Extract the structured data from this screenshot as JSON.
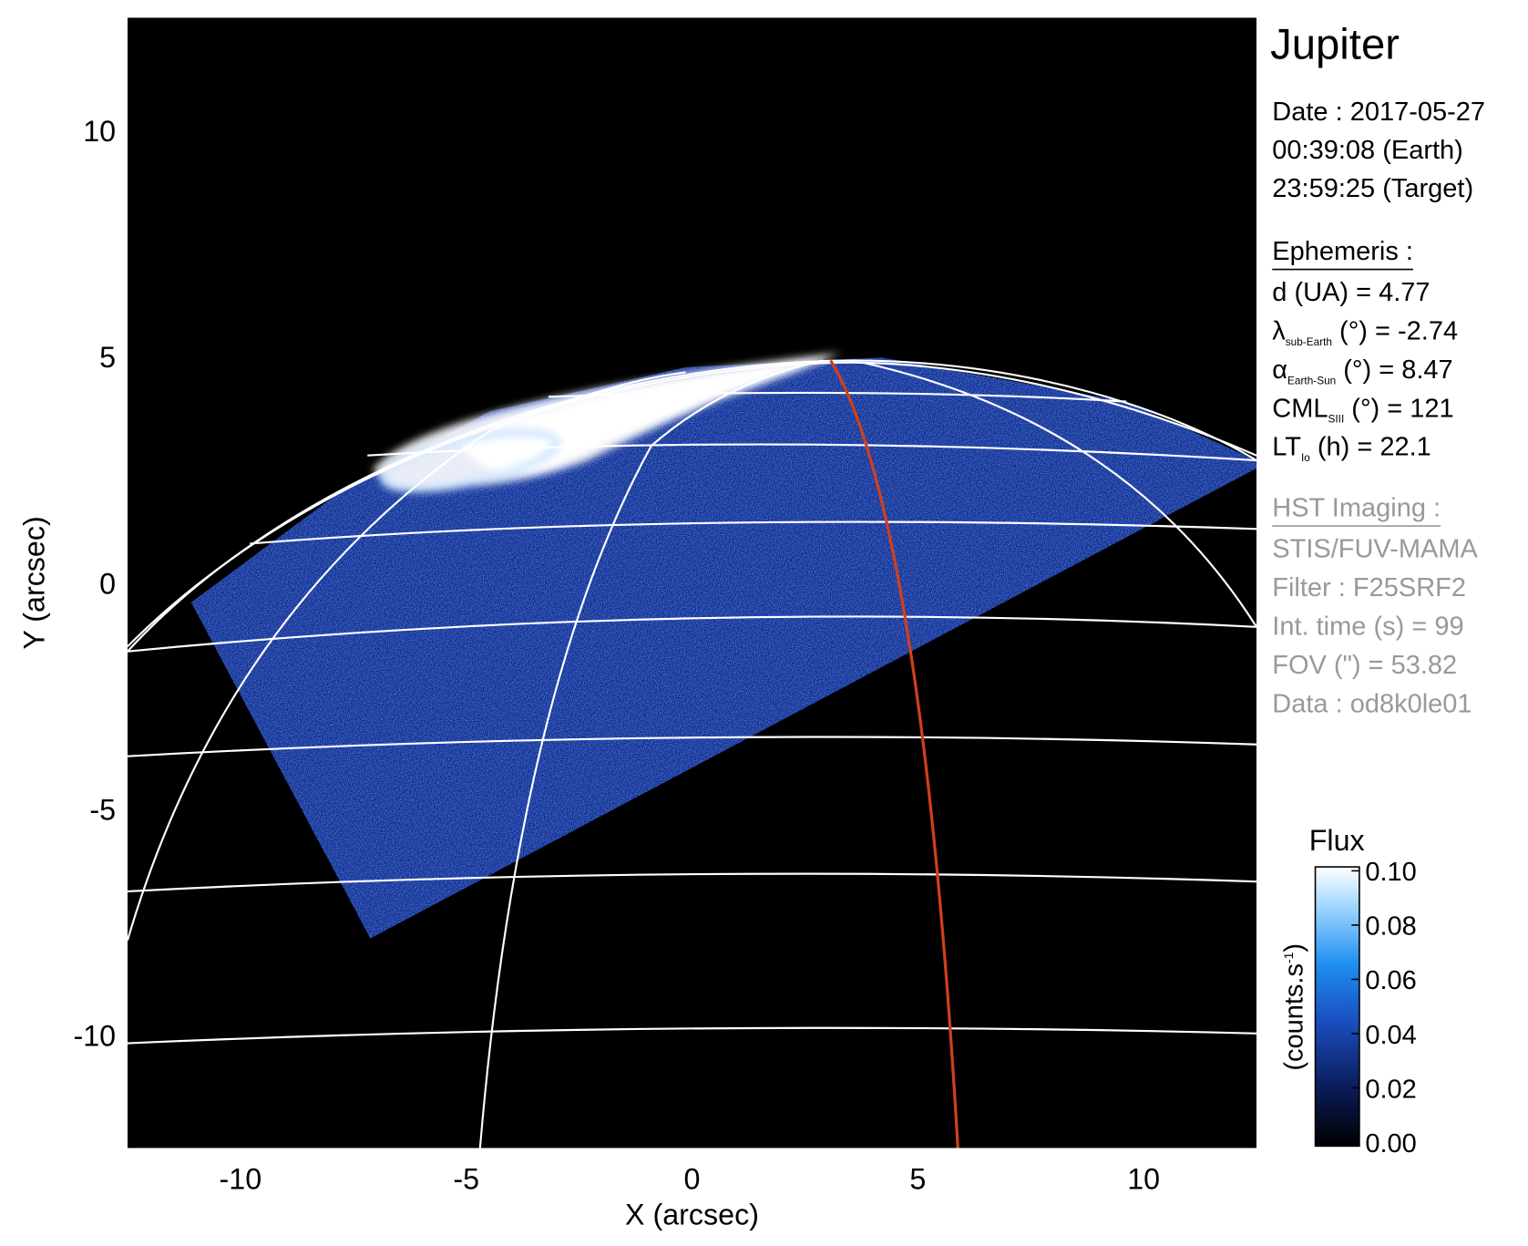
{
  "chart_data": {
    "type": "image",
    "title": "Jupiter",
    "x_label": "X (arcsec)",
    "y_label": "Y (arcsec)",
    "xlim": [
      -12.5,
      12.5
    ],
    "ylim": [
      -12.5,
      12.5
    ],
    "xticks": [
      -10,
      -5,
      0,
      5,
      10
    ],
    "yticks": [
      -10,
      -5,
      0,
      5,
      10
    ],
    "info": [
      "Date : 2017-05-27",
      "00:39:08 (Earth)",
      "23:59:25 (Target)"
    ],
    "ephemeris": {
      "heading": "Ephemeris :",
      "lines": [
        {
          "main": "d (UA)    = 4.77"
        },
        {
          "main": "λ",
          "sub": "sub-Earth",
          "rest": " (°) = -2.74"
        },
        {
          "main": "α",
          "sub": "Earth-Sun",
          "rest": " (°) = 8.47"
        },
        {
          "main": "CML",
          "sub": "SIII",
          "rest": " (°) = 121"
        },
        {
          "main": "LT",
          "sub": "Io",
          "rest": " (h) = 22.1"
        }
      ]
    },
    "imaging": {
      "heading": "HST Imaging :",
      "lines": [
        "STIS/FUV-MAMA",
        "Filter : F25SRF2",
        "Int. time (s) = 99",
        "FOV (\") = 53.82",
        "Data : od8k0le01"
      ]
    },
    "colorbar": {
      "title": "Flux",
      "unit": "(counts.s",
      "unit_sup": "-1",
      "unit_end": ")",
      "clim": [
        0,
        0.1
      ],
      "ticks": [
        {
          "value": 0,
          "label": "0.00"
        },
        {
          "value": 0.02,
          "label": "0.02"
        },
        {
          "value": 0.04,
          "label": "0.04"
        },
        {
          "value": 0.06,
          "label": "0.06"
        },
        {
          "value": 0.08,
          "label": "0.08"
        },
        {
          "value": 0.1,
          "label": "0.10"
        }
      ]
    }
  }
}
